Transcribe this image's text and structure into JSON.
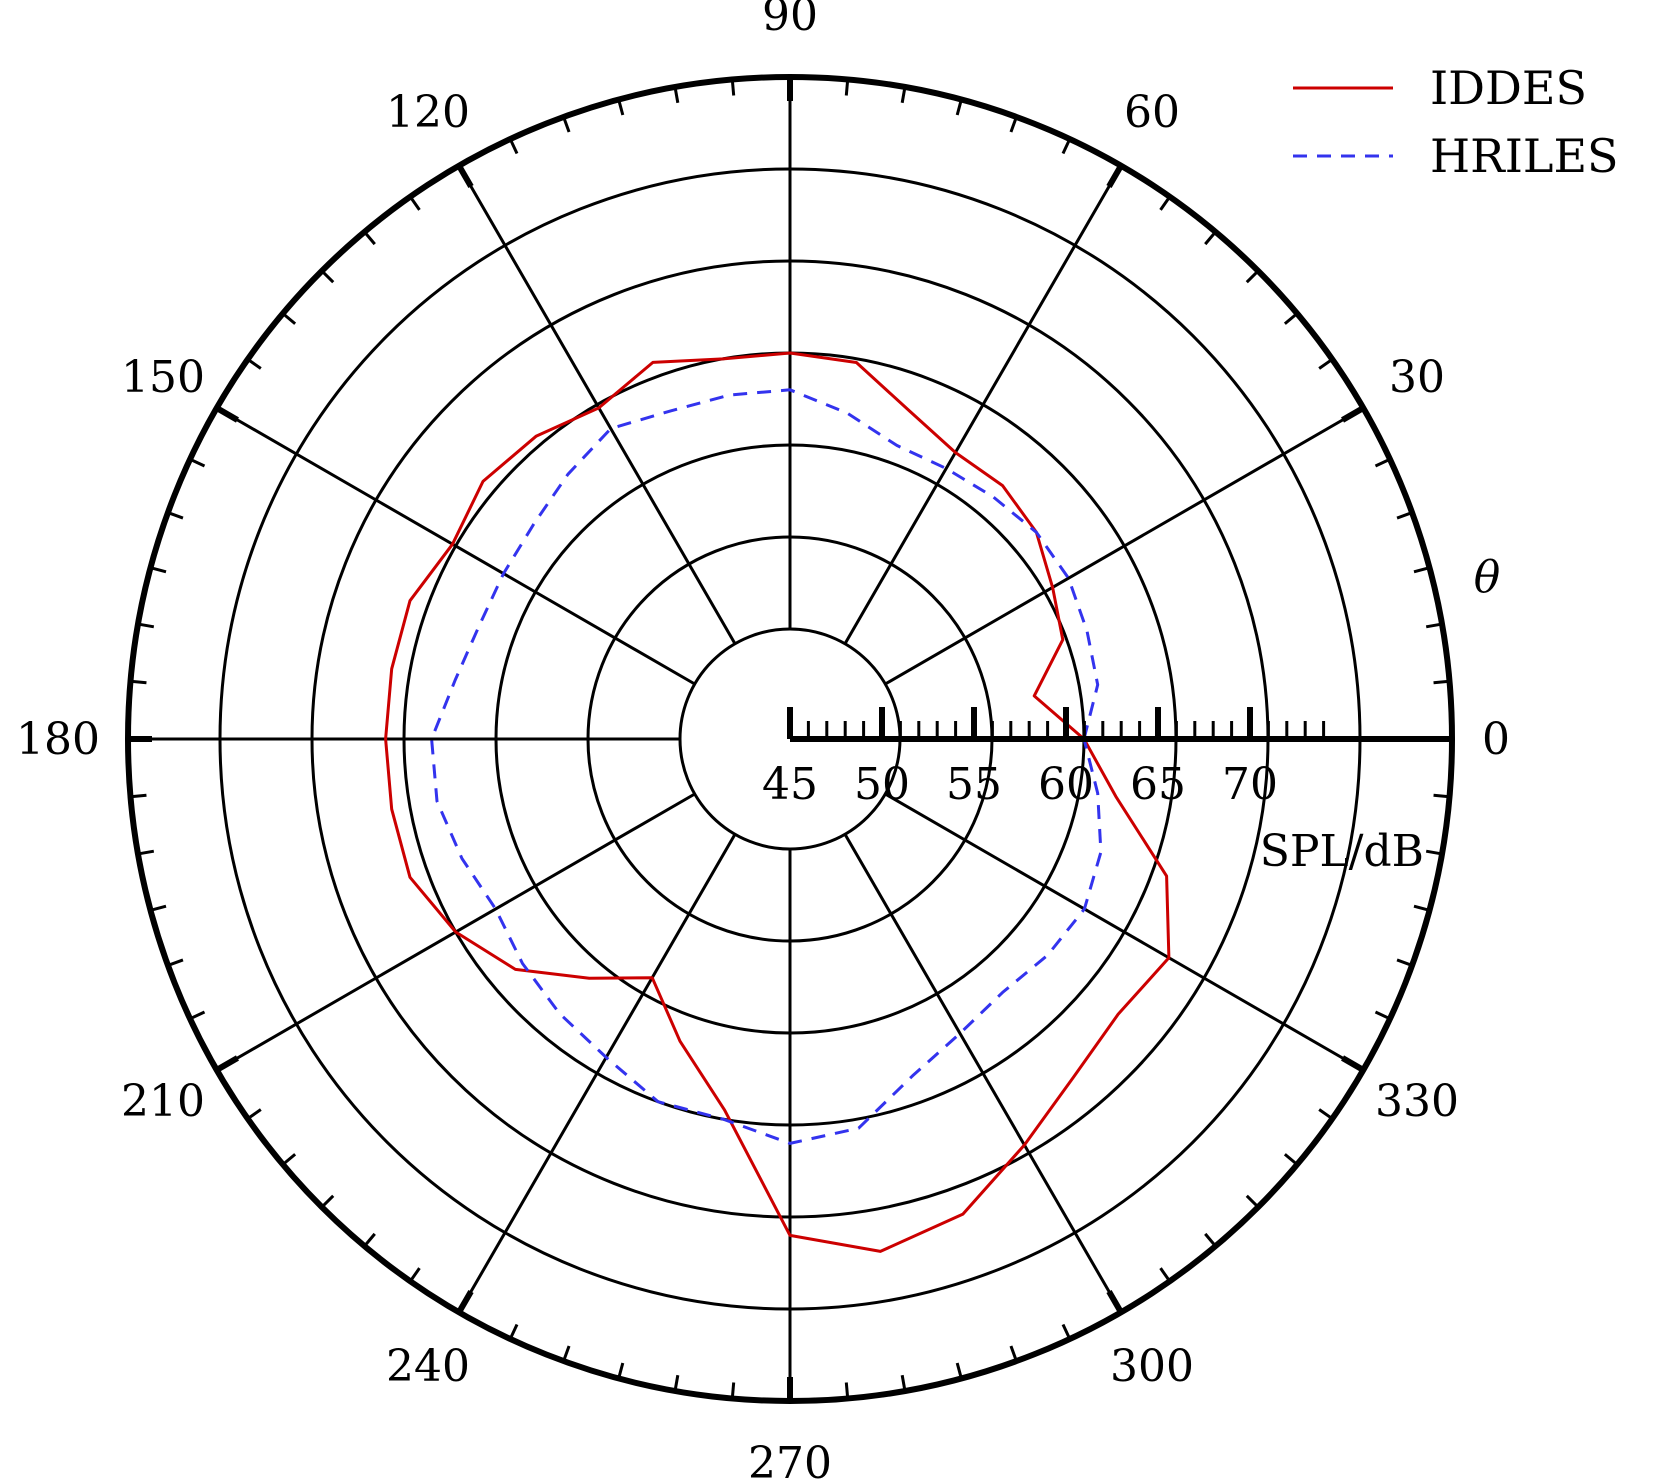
{
  "chart_data": {
    "type": "line",
    "subtype": "polar",
    "title": "",
    "radial_axis": {
      "label": "SPL/dB",
      "range": [
        45,
        75
      ],
      "major_ticks": [
        45,
        50,
        55,
        60,
        65,
        70
      ],
      "tick_labels": [
        "45",
        "50",
        "55",
        "60",
        "65",
        "70"
      ],
      "minor_step": 1
    },
    "angular_axis": {
      "label": "θ",
      "unit": "degrees",
      "major_ticks": [
        0,
        30,
        60,
        90,
        120,
        150,
        180,
        210,
        240,
        270,
        300,
        330
      ],
      "tick_labels": [
        "0",
        "30",
        "60",
        "90",
        "120",
        "150",
        "180",
        "210",
        "240",
        "270",
        "300",
        "330"
      ],
      "minor_step": 5
    },
    "grid": true,
    "legend": {
      "position": "top-right"
    },
    "series": [
      {
        "name": "IDDES",
        "color": "#cc0000",
        "style": "solid",
        "theta": [
          0,
          10,
          20,
          30,
          40,
          50,
          60,
          70,
          80,
          90,
          100,
          110,
          120,
          130,
          140,
          150,
          160,
          170,
          180,
          190,
          200,
          210,
          220,
          230,
          240,
          250,
          260,
          270,
          280,
          290,
          300,
          310,
          320,
          330,
          340,
          350,
          0
        ],
        "r": [
          55,
          52.5,
          54.8,
          55.5,
          56.5,
          57.0,
          57.0,
          58.0,
          59.8,
          60.0,
          60.0,
          60.8,
          59.8,
          60.5,
          60.8,
          60.2,
          61.0,
          61.0,
          61.0,
          61.0,
          61.0,
          60.0,
          58.5,
          56.0,
          54.0,
          56.5,
          59.5,
          66.0,
          67.3,
          66.5,
          64.5,
          63.0,
          62.3,
          62.8,
          60.8,
          57.0,
          55
        ]
      },
      {
        "name": "HRILES",
        "color": "#3333ee",
        "style": "dashed",
        "theta": [
          0,
          10,
          20,
          30,
          40,
          50,
          60,
          70,
          80,
          90,
          100,
          110,
          120,
          130,
          140,
          150,
          160,
          170,
          180,
          190,
          200,
          210,
          220,
          230,
          240,
          250,
          260,
          270,
          280,
          290,
          300,
          310,
          320,
          330,
          340,
          350,
          0
        ],
        "r": [
          55.0,
          56.0,
          56.2,
          56.5,
          56.5,
          56.2,
          56.0,
          56.0,
          57.0,
          58.0,
          58.0,
          58.0,
          58.5,
          57.8,
          57.2,
          57.0,
          57.0,
          57.5,
          58.5,
          58.5,
          58.0,
          57.5,
          58.0,
          58.5,
          59.0,
          60.0,
          60.0,
          61.0,
          60.5,
          58.5,
          57.5,
          57.0,
          57.3,
          57.5,
          57.0,
          56.0,
          55.0
        ]
      }
    ]
  }
}
